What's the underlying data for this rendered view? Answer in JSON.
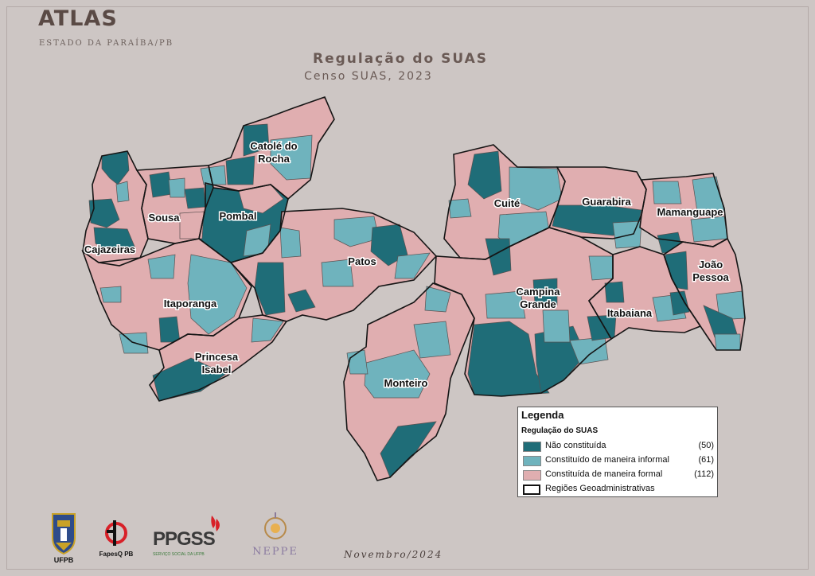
{
  "header": {
    "title": "ATLAS",
    "subtitle": "ESTADO DA PARAÍBA/PB"
  },
  "map": {
    "title": "Regulação do SUAS",
    "subtitle": "Censo SUAS, 2023",
    "colors": {
      "nao_constituida": "#1f6d78",
      "informal": "#6fb3bd",
      "formal": "#e0aeb0",
      "border": "#2a2a2a"
    },
    "regions": [
      {
        "id": "catole",
        "lines": [
          "Catolé do",
          "Rocha"
        ]
      },
      {
        "id": "sousa",
        "lines": [
          "Sousa"
        ]
      },
      {
        "id": "pombal",
        "lines": [
          "Pombal"
        ]
      },
      {
        "id": "cajazeiras",
        "lines": [
          "Cajazeiras"
        ]
      },
      {
        "id": "itaporanga",
        "lines": [
          "Itaporanga"
        ]
      },
      {
        "id": "princesa",
        "lines": [
          "Princesa",
          "Isabel"
        ]
      },
      {
        "id": "patos",
        "lines": [
          "Patos"
        ]
      },
      {
        "id": "monteiro",
        "lines": [
          "Monteiro"
        ]
      },
      {
        "id": "cuite",
        "lines": [
          "Cuité"
        ]
      },
      {
        "id": "campina",
        "lines": [
          "Campina",
          "Grande"
        ]
      },
      {
        "id": "guarabira",
        "lines": [
          "Guarabira"
        ]
      },
      {
        "id": "mamanguape",
        "lines": [
          "Mamanguape"
        ]
      },
      {
        "id": "joao_pessoa",
        "lines": [
          "João",
          "Pessoa"
        ]
      },
      {
        "id": "itabaiana",
        "lines": [
          "Itabaiana"
        ]
      }
    ]
  },
  "legend": {
    "title": "Legenda",
    "subtitle": "Regulação do SUAS",
    "items": [
      {
        "label": "Não constituída",
        "count": "(50)",
        "color": "#1f6d78"
      },
      {
        "label": "Constituído de maneira informal",
        "count": "(61)",
        "color": "#6fb3bd"
      },
      {
        "label": "Constituída de maneira formal",
        "count": "(112)",
        "color": "#e0aeb0"
      }
    ],
    "regions_label": "Regiões Geoadministrativas"
  },
  "footer": {
    "date": "Novembro/2024",
    "logos": [
      "UFPB",
      "FapesQ PB",
      "PPGSS",
      "SERVIÇO SOCIAL DA UFPB",
      "NEPPE"
    ]
  }
}
